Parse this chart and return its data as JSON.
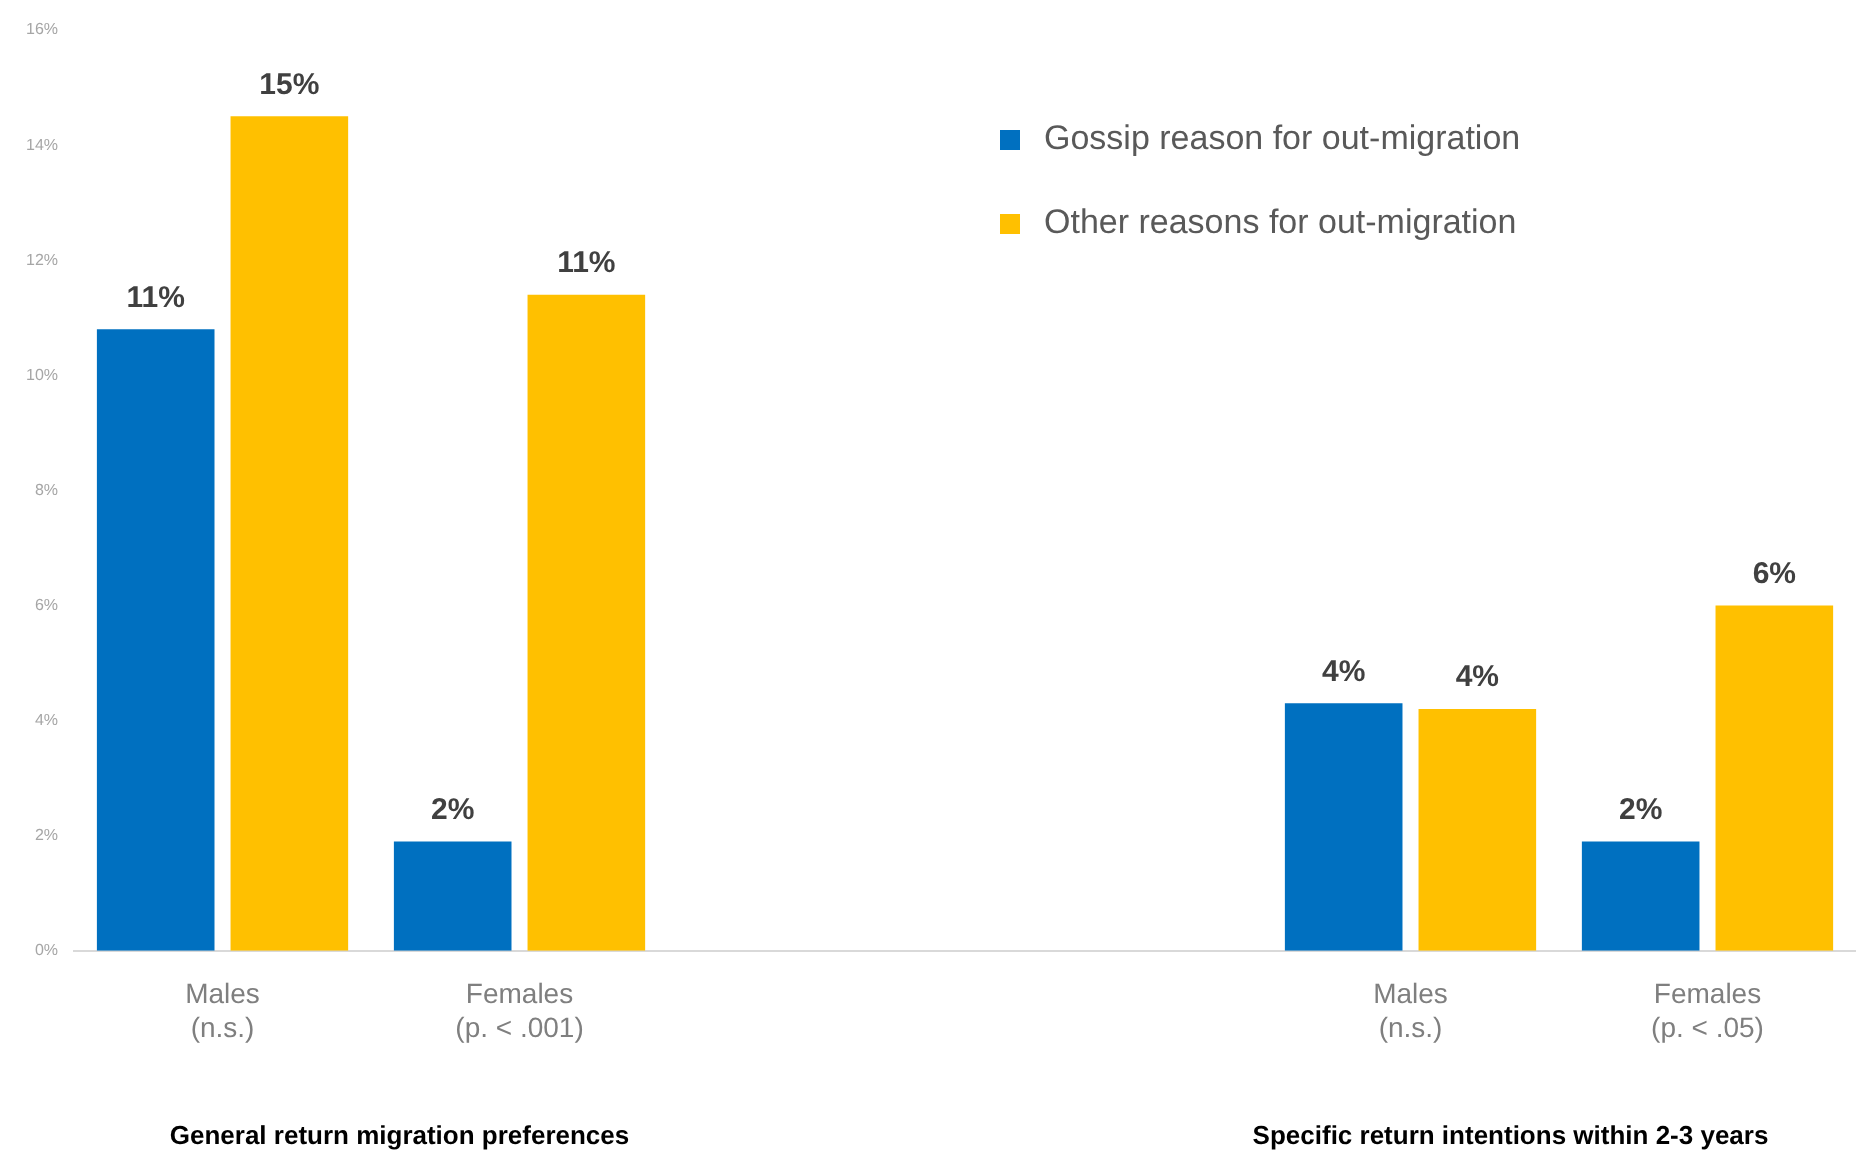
{
  "chart_data": {
    "type": "bar",
    "categories": [
      "Males\n(n.s.)",
      "Females\n(p. < .001)",
      null,
      null,
      "Males\n(n.s.)",
      "Females\n(p. < .05)"
    ],
    "series": [
      {
        "name": "Gossip reason for out-migration",
        "color": "#0070c0",
        "values": [
          10.8,
          1.9,
          null,
          null,
          4.3,
          1.9
        ],
        "value_labels": [
          "11%",
          "2%",
          null,
          null,
          "4%",
          "2%"
        ]
      },
      {
        "name": "Other reasons for out-migration",
        "color": "#ffc000",
        "values": [
          14.5,
          11.4,
          null,
          null,
          4.2,
          6.0
        ],
        "value_labels": [
          "15%",
          "11%",
          null,
          null,
          "4%",
          "6%"
        ]
      }
    ],
    "ylim": [
      0,
      16
    ],
    "yticks": [
      {
        "value": 0,
        "label": "0%"
      },
      {
        "value": 2,
        "label": "2%"
      },
      {
        "value": 4,
        "label": "4%"
      },
      {
        "value": 6,
        "label": "6%"
      },
      {
        "value": 8,
        "label": "8%"
      },
      {
        "value": 10,
        "label": "10%"
      },
      {
        "value": 12,
        "label": "12%"
      },
      {
        "value": 14,
        "label": "14%"
      },
      {
        "value": 16,
        "label": "16%"
      }
    ],
    "annotations": [
      "General return migration preferences",
      "Specific return intentions within 2-3 years"
    ],
    "legend": "top right",
    "grid": false
  }
}
